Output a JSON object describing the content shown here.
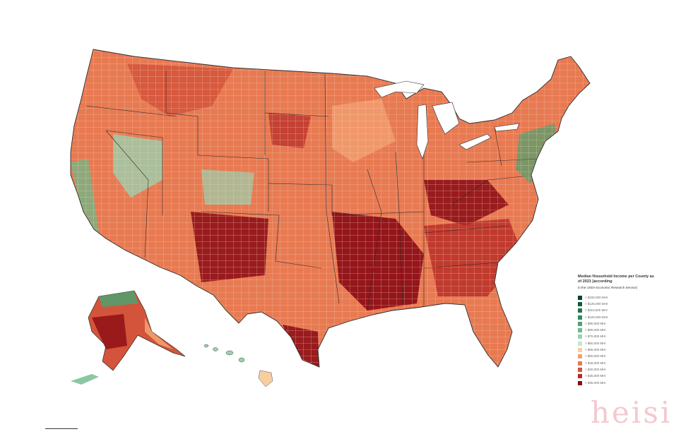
{
  "map": {
    "region": "United States",
    "state_names_printed": false
  },
  "legend": {
    "title": "Median Household Income per County as of 2021 [according",
    "subtitle": "to the USDA Economic Research Service]",
    "entries": [
      {
        "label": "> $150,000 MHI",
        "color": "#00452a"
      },
      {
        "label": "> $125,000 MHI",
        "color": "#0b5e37"
      },
      {
        "label": "> $110,000 MHI",
        "color": "#1c7547"
      },
      {
        "label": "> $100,000 MHI",
        "color": "#2f8b5a"
      },
      {
        "label": "> $90,000 MHI",
        "color": "#4da271"
      },
      {
        "label": "> $80,000 MHI",
        "color": "#6fb98a"
      },
      {
        "label": "> $70,000 MHI",
        "color": "#9ad1ae"
      },
      {
        "label": "> $60,000 MHI",
        "color": "#c6e6cf"
      },
      {
        "label": "> $55,000 MHI",
        "color": "#f7cf9f"
      },
      {
        "label": "> $50,000 MHI",
        "color": "#f2a071"
      },
      {
        "label": "> $45,000 MHI",
        "color": "#e87a52"
      },
      {
        "label": "> $40,000 MHI",
        "color": "#d4543b"
      },
      {
        "label": "> $35,000 MHI",
        "color": "#b72a26"
      },
      {
        "label": "< $35,000 MHI",
        "color": "#8b0a14"
      }
    ]
  },
  "colors": {
    "state_border": "#2b2b2b",
    "county_border": "#f4d3c0",
    "background": "#ffffff"
  },
  "watermark": "heisi"
}
